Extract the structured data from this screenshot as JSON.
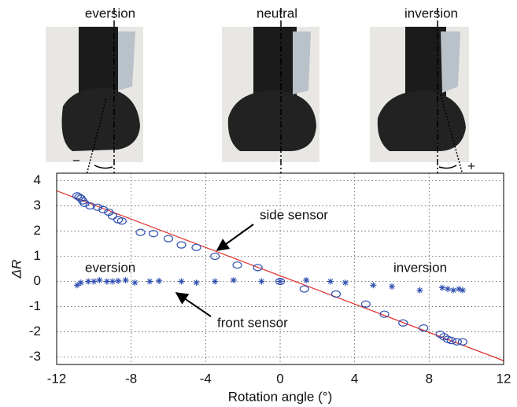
{
  "photos": {
    "labels": [
      "eversion",
      "neutral",
      "inversion"
    ],
    "minus": "−",
    "plus": "+"
  },
  "chart_data": {
    "type": "scatter",
    "xlabel": "Rotation angle (°)",
    "ylabel": "ΔR",
    "xlim": [
      -12,
      12
    ],
    "ylim": [
      -3.3,
      4.3
    ],
    "xticks": [
      -12,
      -8,
      -4,
      0,
      4,
      8,
      12
    ],
    "yticks": [
      -3,
      -2,
      -1,
      0,
      1,
      2,
      3,
      4
    ],
    "grid": true,
    "series": [
      {
        "marker": "circle",
        "color": "#2f4fb0",
        "x": [
          -10.9,
          -10.8,
          -10.7,
          -10.6,
          -10.5,
          -10.2,
          -9.8,
          -9.5,
          -9.2,
          -9,
          -8.7,
          -8.5,
          -7.5,
          -6.8,
          -6,
          -5.3,
          -4.5,
          -3.5,
          -2.3,
          -1.2,
          0,
          1.3,
          3,
          4.6,
          5.6,
          6.6,
          7.7,
          8.6,
          8.8,
          9,
          9.2,
          9.5,
          9.8
        ],
        "values": [
          3.4,
          3.35,
          3.3,
          3.2,
          3.1,
          3.0,
          2.95,
          2.85,
          2.75,
          2.6,
          2.45,
          2.4,
          1.95,
          1.9,
          1.7,
          1.45,
          1.35,
          1.0,
          0.65,
          0.55,
          0,
          -0.3,
          -0.5,
          -0.9,
          -1.3,
          -1.65,
          -1.85,
          -2.1,
          -2.2,
          -2.3,
          -2.35,
          -2.4,
          -2.4
        ]
      },
      {
        "marker": "star",
        "color": "#2f4fb0",
        "x": [
          -10.9,
          -10.7,
          -10.3,
          -10,
          -9.7,
          -9.3,
          -9,
          -8.7,
          -8.3,
          -7.8,
          -7,
          -6.5,
          -5.3,
          -4.5,
          -3.5,
          -2.5,
          -1,
          0,
          1.4,
          2.7,
          3.5,
          5,
          6,
          7.5,
          8.7,
          9,
          9.3,
          9.6,
          9.8
        ],
        "values": [
          -0.15,
          -0.05,
          0,
          0,
          0.05,
          0,
          0,
          0.02,
          0.05,
          -0.05,
          0,
          0.02,
          0,
          -0.05,
          0,
          0.05,
          0,
          0,
          0.05,
          0,
          -0.05,
          -0.15,
          -0.2,
          -0.35,
          -0.25,
          -0.3,
          -0.35,
          -0.3,
          -0.35
        ]
      }
    ],
    "fit_line": {
      "color": "#e0302a",
      "x": [
        -12,
        12
      ],
      "values": [
        3.6,
        -3.15
      ]
    },
    "annotations": [
      "side sensor",
      "front sensor",
      "eversion",
      "inversion"
    ]
  }
}
